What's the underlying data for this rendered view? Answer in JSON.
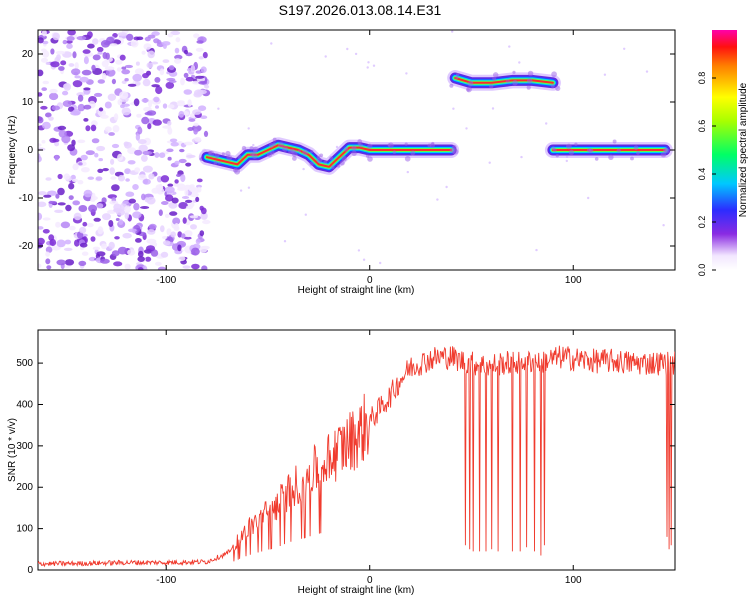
{
  "title": "S197.2026.013.08.14.E31",
  "colors": {
    "snr_line": "#f03b2e",
    "scatter_noise": "#7b2cd6",
    "axis": "#000000"
  },
  "chart_data": [
    {
      "type": "heatmap",
      "xlabel": "Height of straight line (km)",
      "ylabel": "Frequency (Hz)",
      "xlim": [
        -163,
        150
      ],
      "ylim": [
        -25,
        25
      ],
      "x_ticks": [
        "-100",
        "0",
        "100"
      ],
      "y_ticks": [
        "-20",
        "-10",
        "0",
        "10",
        "20"
      ],
      "colorbar": {
        "label": "Normalized spectral amplitude",
        "range": [
          0,
          1
        ],
        "ticks": [
          "0.0",
          "0.2",
          "0.4",
          "0.6",
          "0.8"
        ]
      },
      "noise_region_x": [
        -163,
        -80
      ],
      "track_segments": [
        {
          "x": [
            -80,
            -75,
            -70,
            -65,
            -60,
            -55,
            -50,
            -45,
            -40,
            -35,
            -30,
            -25,
            -20,
            -15,
            -10,
            -5,
            0,
            10,
            20,
            30,
            40
          ],
          "y": [
            -1.5,
            -2,
            -2.5,
            -3,
            -1,
            -1,
            0,
            1,
            0.5,
            0,
            -1,
            -3,
            -3.5,
            -1.5,
            0.5,
            0.5,
            0,
            0,
            0,
            0,
            0
          ]
        },
        {
          "x": [
            42,
            50,
            60,
            70,
            80,
            90
          ],
          "y": [
            15,
            14,
            14,
            14.5,
            14.5,
            14
          ]
        },
        {
          "x": [
            90,
            100,
            110,
            120,
            130,
            145
          ],
          "y": [
            0,
            0,
            0,
            0,
            0,
            0
          ]
        }
      ]
    },
    {
      "type": "line",
      "xlabel": "Height of straight line (km)",
      "ylabel": "SNR (10 * v/v)",
      "xlim": [
        -163,
        150
      ],
      "ylim": [
        0,
        580
      ],
      "x_ticks": [
        "-100",
        "0",
        "100"
      ],
      "y_ticks": [
        "0",
        "100",
        "200",
        "300",
        "400",
        "500"
      ],
      "series": [
        {
          "x": [
            -163,
            -140,
            -120,
            -100,
            -80,
            -70,
            -65,
            -60,
            -55,
            -50,
            -45,
            -40,
            -35,
            -30,
            -25,
            -20,
            -15,
            -10,
            -5,
            0,
            5,
            10,
            15,
            20,
            25,
            30,
            35,
            40,
            45,
            50,
            55,
            60,
            65,
            70,
            75,
            80,
            85,
            90,
            95,
            100,
            110,
            120,
            130,
            140,
            150
          ],
          "y": [
            15,
            16,
            18,
            18,
            20,
            40,
            70,
            100,
            120,
            140,
            160,
            190,
            210,
            230,
            250,
            270,
            290,
            310,
            330,
            360,
            390,
            420,
            460,
            490,
            500,
            510,
            515,
            515,
            505,
            500,
            495,
            495,
            500,
            500,
            505,
            505,
            505,
            510,
            515,
            510,
            505,
            505,
            500,
            500,
            500
          ]
        }
      ],
      "dropouts": [
        {
          "x": 47,
          "low": 60
        },
        {
          "x": 49,
          "low": 50
        },
        {
          "x": 51,
          "low": 45
        },
        {
          "x": 54,
          "low": 45
        },
        {
          "x": 57,
          "low": 45
        },
        {
          "x": 60,
          "low": 50
        },
        {
          "x": 63,
          "low": 45
        },
        {
          "x": 70,
          "low": 45
        },
        {
          "x": 74,
          "low": 45
        },
        {
          "x": 77,
          "low": 55
        },
        {
          "x": 81,
          "low": 45
        },
        {
          "x": 84,
          "low": 35
        },
        {
          "x": 86,
          "low": 60
        },
        {
          "x": 146,
          "low": 80
        },
        {
          "x": 147,
          "low": 50
        },
        {
          "x": 148,
          "low": 60
        }
      ]
    }
  ]
}
